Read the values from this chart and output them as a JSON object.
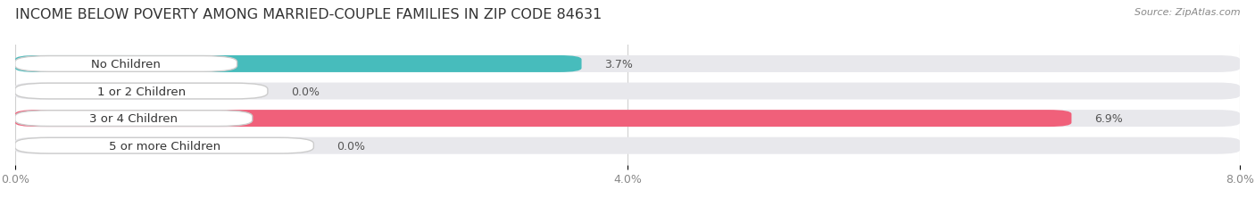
{
  "title": "INCOME BELOW POVERTY AMONG MARRIED-COUPLE FAMILIES IN ZIP CODE 84631",
  "source": "Source: ZipAtlas.com",
  "categories": [
    "No Children",
    "1 or 2 Children",
    "3 or 4 Children",
    "5 or more Children"
  ],
  "values": [
    3.7,
    0.0,
    6.9,
    0.0
  ],
  "bar_colors": [
    "#47bcbc",
    "#a0a0d0",
    "#f0607a",
    "#f5c488"
  ],
  "bar_bg_color": "#e8e8ec",
  "xlim": [
    0,
    8.0
  ],
  "xticks": [
    0.0,
    4.0,
    8.0
  ],
  "xtick_labels": [
    "0.0%",
    "4.0%",
    "8.0%"
  ],
  "background_color": "#ffffff",
  "title_fontsize": 11.5,
  "label_fontsize": 9.5,
  "value_fontsize": 9,
  "bar_height": 0.62,
  "fig_width": 14.06,
  "fig_height": 2.32
}
